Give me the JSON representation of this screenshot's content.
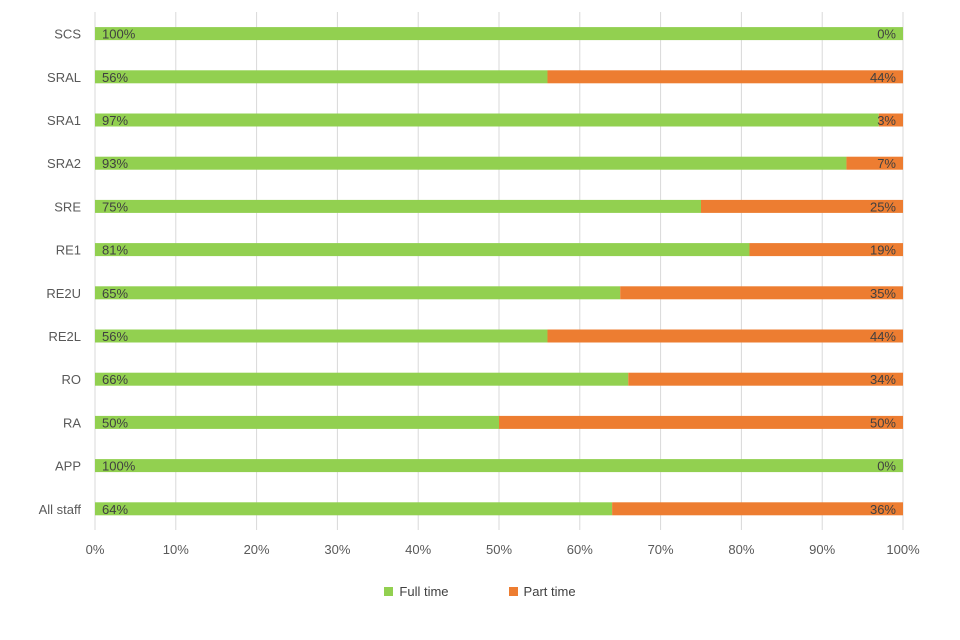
{
  "chart_data": {
    "type": "bar",
    "orientation": "horizontal",
    "stacked": true,
    "categories": [
      "SCS",
      "SRAL",
      "SRA1",
      "SRA2",
      "SRE",
      "RE1",
      "RE2U",
      "RE2L",
      "RO",
      "RA",
      "APP",
      "All staff"
    ],
    "series": [
      {
        "name": "Full time",
        "color": "#92d050",
        "values": [
          100,
          56,
          97,
          93,
          75,
          81,
          65,
          56,
          66,
          50,
          100,
          64
        ],
        "labels": [
          "100%",
          "56%",
          "97%",
          "93%",
          "75%",
          "81%",
          "65%",
          "56%",
          "66%",
          "50%",
          "100%",
          "64%"
        ]
      },
      {
        "name": "Part time",
        "color": "#ed7d31",
        "values": [
          0,
          44,
          3,
          7,
          25,
          19,
          35,
          44,
          34,
          50,
          0,
          36
        ],
        "labels": [
          "0%",
          "44%",
          "3%",
          "7%",
          "25%",
          "19%",
          "35%",
          "44%",
          "34%",
          "50%",
          "0%",
          "36%"
        ]
      }
    ],
    "xlim": [
      0,
      100
    ],
    "x_ticks": [
      "0%",
      "10%",
      "20%",
      "30%",
      "40%",
      "50%",
      "60%",
      "70%",
      "80%",
      "90%",
      "100%"
    ],
    "grid": "vertical",
    "legend": "bottom-center",
    "title": "",
    "xlabel": "",
    "ylabel": ""
  },
  "legend": {
    "items": [
      {
        "label": "Full time",
        "color": "#92d050"
      },
      {
        "label": "Part time",
        "color": "#ed7d31"
      }
    ]
  }
}
